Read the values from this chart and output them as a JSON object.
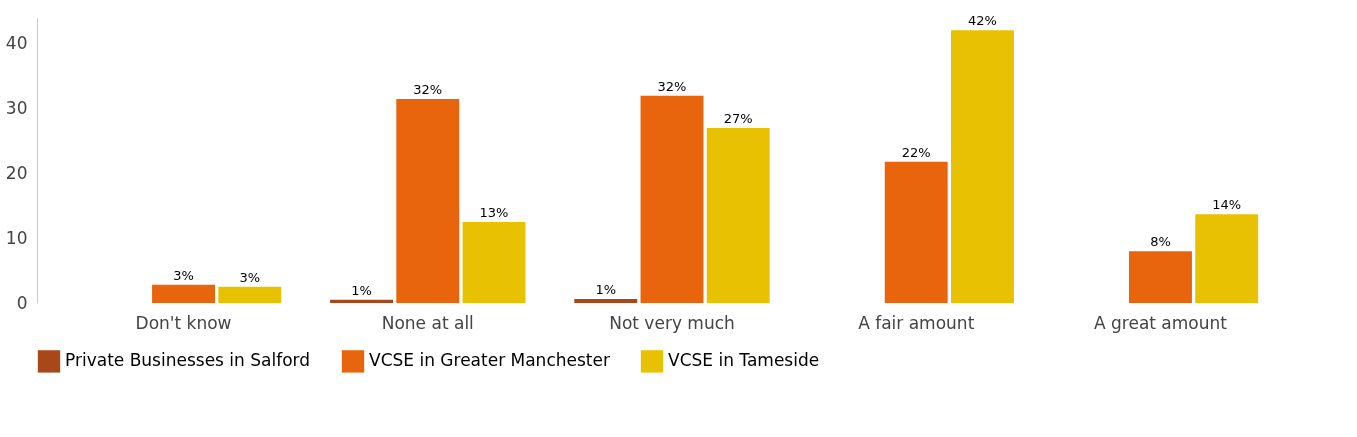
{
  "chart_data": {
    "type": "bar",
    "categories": [
      "Don't know",
      "None at all",
      "Not very much",
      "A fair amount",
      "A great amount"
    ],
    "series": [
      {
        "name": "Private Businesses in Salford",
        "color": "#a8481a",
        "values": [
          null,
          0.5,
          0.6,
          null,
          null
        ],
        "value_labels": [
          null,
          "1%",
          "1%",
          null,
          null
        ]
      },
      {
        "name": "VCSE in Greater Manchester",
        "color": "#e8650e",
        "values": [
          2.8,
          31.5,
          32,
          21.8,
          8
        ],
        "value_labels": [
          "3%",
          "32%",
          "32%",
          "22%",
          "8%"
        ]
      },
      {
        "name": "VCSE in Tameside",
        "color": "#e8c202",
        "values": [
          2.5,
          12.5,
          27,
          42.1,
          13.7
        ],
        "value_labels": [
          "3%",
          "13%",
          "27%",
          "42%",
          "14%"
        ]
      }
    ],
    "ylim": [
      0,
      44
    ],
    "yticks": [
      0,
      10,
      20,
      30,
      40
    ],
    "grid": false,
    "legend": "bottom"
  }
}
